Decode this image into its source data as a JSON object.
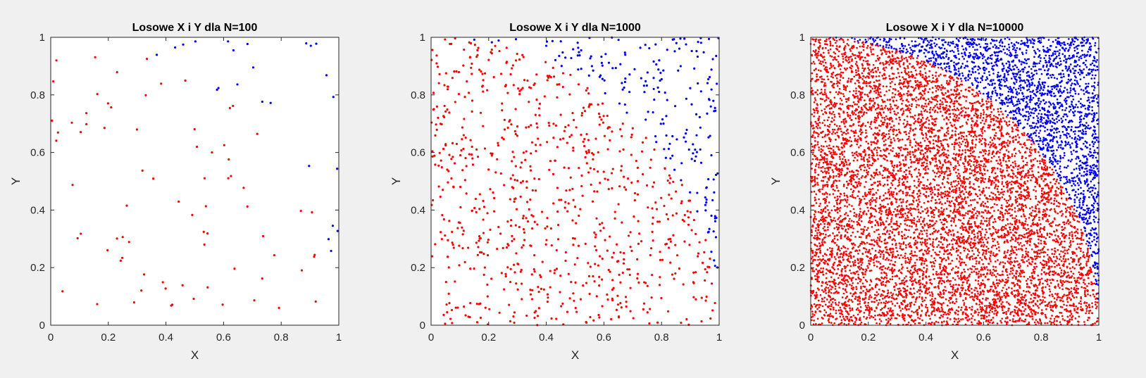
{
  "window": {
    "background": "#f0f0f0"
  },
  "colors": {
    "inside": "#ff0000",
    "outside": "#0000ff",
    "axes": "#262626",
    "plot_bg": "#ffffff"
  },
  "chart_data": [
    {
      "type": "scatter",
      "title": "Losowe X i Y dla N=100",
      "xlabel": "X",
      "ylabel": "Y",
      "xlim": [
        0,
        1
      ],
      "ylim": [
        0,
        1
      ],
      "xticks": [
        "0",
        "0.2",
        "0.4",
        "0.6",
        "0.8",
        "1"
      ],
      "yticks": [
        "0",
        "0.2",
        "0.4",
        "0.6",
        "0.8",
        "1"
      ],
      "grid": false,
      "n_points": 100,
      "series": [
        {
          "color": "#ff0000",
          "rule": "x^2 + y^2 <= 1"
        },
        {
          "color": "#0000ff",
          "rule": "x^2 + y^2 > 1"
        }
      ]
    },
    {
      "type": "scatter",
      "title": "Losowe X i Y dla N=1000",
      "xlabel": "X",
      "ylabel": "Y",
      "xlim": [
        0,
        1
      ],
      "ylim": [
        0,
        1
      ],
      "xticks": [
        "0",
        "0.2",
        "0.4",
        "0.6",
        "0.8",
        "1"
      ],
      "yticks": [
        "0",
        "0.2",
        "0.4",
        "0.6",
        "0.8",
        "1"
      ],
      "grid": false,
      "n_points": 1000,
      "series": [
        {
          "color": "#ff0000",
          "rule": "x^2 + y^2 <= 1"
        },
        {
          "color": "#0000ff",
          "rule": "x^2 + y^2 > 1"
        }
      ]
    },
    {
      "type": "scatter",
      "title": "Losowe X i Y dla N=10000",
      "xlabel": "X",
      "ylabel": "Y",
      "xlim": [
        0,
        1
      ],
      "ylim": [
        0,
        1
      ],
      "xticks": [
        "0",
        "0.2",
        "0.4",
        "0.6",
        "0.8",
        "1"
      ],
      "yticks": [
        "0",
        "0.2",
        "0.4",
        "0.6",
        "0.8",
        "1"
      ],
      "grid": false,
      "n_points": 10000,
      "series": [
        {
          "color": "#ff0000",
          "rule": "x^2 + y^2 <= 1"
        },
        {
          "color": "#0000ff",
          "rule": "x^2 + y^2 > 1"
        }
      ]
    }
  ]
}
